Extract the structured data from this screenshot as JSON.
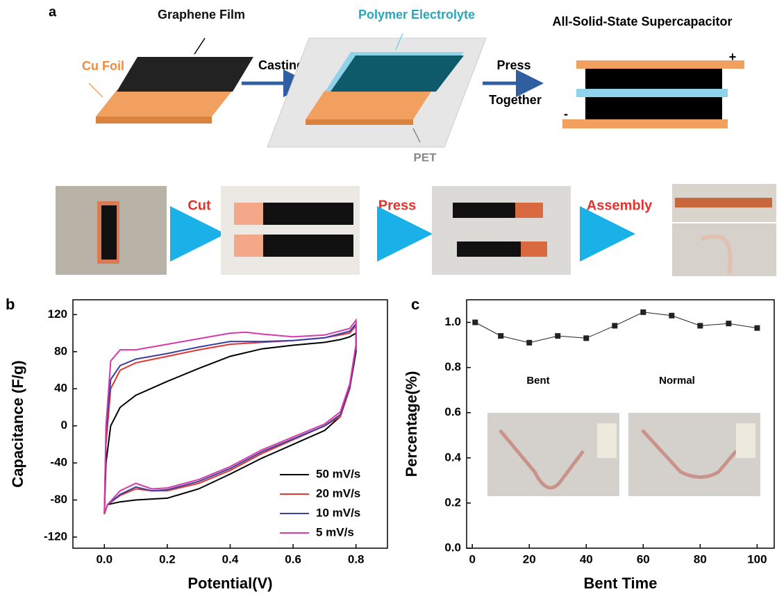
{
  "panel_a": {
    "label": "a",
    "graphene_film": "Graphene Film",
    "cu_foil": "Cu Foil",
    "casting": "Casting",
    "polymer_electrolyte": "Polymer Electrolyte",
    "pet": "PET",
    "press": "Press",
    "together": "Together",
    "device": "All-Solid-State Supercapacitor",
    "plus": "+",
    "minus": "-",
    "step_cut": "Cut",
    "step_press": "Press",
    "step_assembly": "Assembly"
  },
  "panel_b": {
    "label": "b"
  },
  "panel_c": {
    "label": "c",
    "inset_bent": "Bent",
    "inset_normal": "Normal"
  },
  "chart_data": [
    {
      "type": "line",
      "xlabel": "Potential(V)",
      "ylabel": "Capacitance (F/g)",
      "xlim": [
        -0.1,
        0.9
      ],
      "ylim": [
        -132,
        136
      ],
      "xticks": [
        {
          "value": 0,
          "label": "0.0"
        },
        0.2,
        0.4,
        0.6,
        0.8
      ],
      "yticks": [
        -120,
        -80,
        -40,
        0,
        40,
        80,
        120
      ],
      "legend": "lower right",
      "series": [
        {
          "name": "50 mV/s",
          "color": "#000000",
          "x": [
            0,
            0.005,
            0.02,
            0.05,
            0.1,
            0.2,
            0.3,
            0.4,
            0.5,
            0.6,
            0.7,
            0.75,
            0.78,
            0.8,
            0.8,
            0.78,
            0.75,
            0.7,
            0.6,
            0.5,
            0.4,
            0.3,
            0.2,
            0.1,
            0.05,
            0.01,
            0
          ],
          "values": [
            -95,
            -40,
            0,
            20,
            33,
            48,
            62,
            75,
            83,
            87,
            90,
            93,
            96,
            100,
            80,
            40,
            10,
            -5,
            -20,
            -35,
            -52,
            -68,
            -78,
            -80,
            -82,
            -85,
            -95
          ]
        },
        {
          "name": "20 mV/s",
          "color": "#e8332f",
          "x": [
            0,
            0.005,
            0.02,
            0.05,
            0.1,
            0.2,
            0.3,
            0.4,
            0.5,
            0.6,
            0.7,
            0.78,
            0.8,
            0.8,
            0.78,
            0.75,
            0.7,
            0.6,
            0.5,
            0.4,
            0.3,
            0.2,
            0.15,
            0.1,
            0.05,
            0.01,
            0
          ],
          "values": [
            -95,
            -20,
            40,
            60,
            68,
            75,
            82,
            88,
            90,
            92,
            95,
            100,
            108,
            85,
            40,
            10,
            0,
            -15,
            -30,
            -48,
            -62,
            -70,
            -70,
            -68,
            -75,
            -85,
            -95
          ]
        },
        {
          "name": "10 mV/s",
          "color": "#3a3fa0",
          "x": [
            0,
            0.005,
            0.02,
            0.05,
            0.1,
            0.2,
            0.3,
            0.4,
            0.5,
            0.6,
            0.7,
            0.78,
            0.8,
            0.8,
            0.78,
            0.75,
            0.7,
            0.6,
            0.5,
            0.4,
            0.3,
            0.2,
            0.15,
            0.1,
            0.05,
            0.01,
            0
          ],
          "values": [
            -95,
            -10,
            50,
            65,
            72,
            78,
            85,
            91,
            91,
            92,
            95,
            102,
            110,
            85,
            42,
            12,
            0,
            -14,
            -28,
            -46,
            -60,
            -69,
            -70,
            -66,
            -74,
            -85,
            -95
          ]
        },
        {
          "name": "5 mV/s",
          "color": "#d63aa8",
          "x": [
            0,
            0.005,
            0.02,
            0.05,
            0.1,
            0.2,
            0.3,
            0.4,
            0.45,
            0.5,
            0.6,
            0.7,
            0.78,
            0.8,
            0.8,
            0.78,
            0.75,
            0.7,
            0.6,
            0.5,
            0.4,
            0.3,
            0.2,
            0.15,
            0.1,
            0.05,
            0.01,
            0
          ],
          "values": [
            -95,
            0,
            70,
            82,
            82,
            88,
            94,
            100,
            101,
            99,
            96,
            98,
            105,
            114,
            88,
            45,
            15,
            2,
            -12,
            -26,
            -44,
            -58,
            -67,
            -68,
            -62,
            -70,
            -85,
            -95
          ]
        }
      ]
    },
    {
      "type": "line",
      "xlabel": "Bent Time",
      "ylabel": "Percentage(%)",
      "xlim": [
        -2,
        106
      ],
      "ylim": [
        0,
        1.1
      ],
      "xticks": [
        0,
        20,
        40,
        60,
        80,
        100
      ],
      "yticks": [
        {
          "value": 0,
          "label": "0.0"
        },
        0.2,
        0.4,
        0.6,
        0.8,
        {
          "value": 1,
          "label": "1.0"
        }
      ],
      "markers": true,
      "series": [
        {
          "color": "#222222",
          "x": [
            1,
            10,
            20,
            30,
            40,
            50,
            60,
            70,
            80,
            90,
            100
          ],
          "values": [
            1.0,
            0.94,
            0.91,
            0.94,
            0.93,
            0.985,
            1.045,
            1.03,
            0.985,
            0.995,
            0.975
          ]
        }
      ]
    }
  ]
}
